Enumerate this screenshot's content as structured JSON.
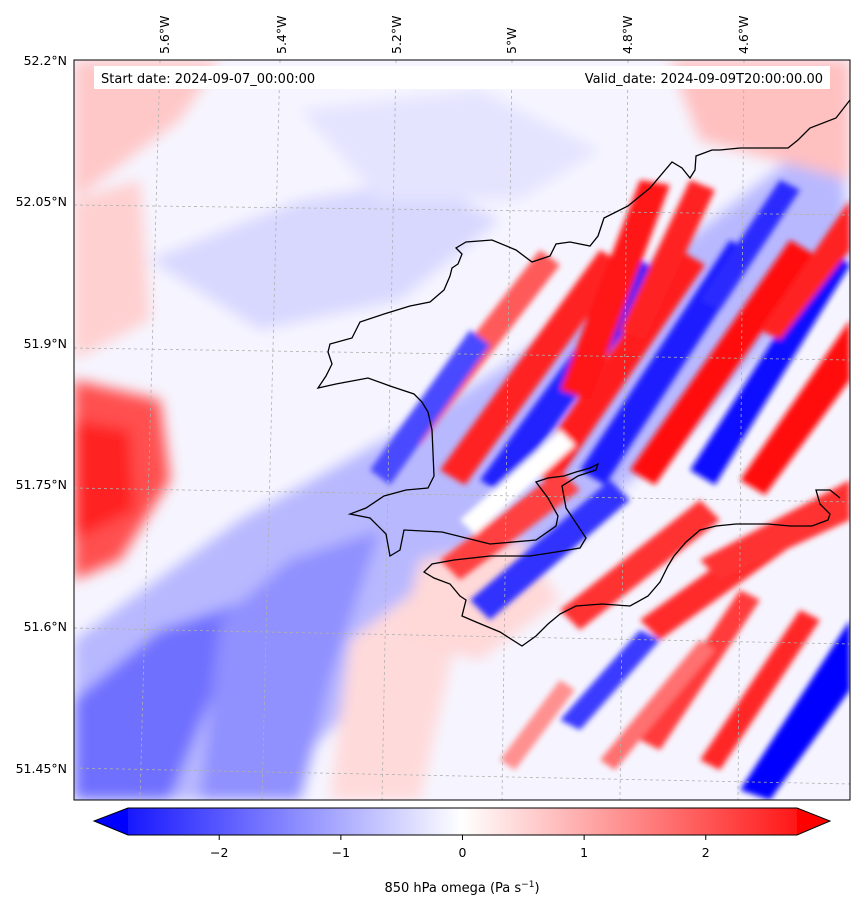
{
  "header": {
    "start_date": "Start date: 2024-09-07_00:00:00",
    "valid_date": "Valid_date: 2024-09-09T20:00:00.00"
  },
  "longitude_labels": [
    "5.6°W",
    "5.4°W",
    "5.2°W",
    "5°W",
    "4.8°W",
    "4.6°W"
  ],
  "latitude_labels": [
    "52.2°N",
    "52.05°N",
    "51.9°N",
    "51.75°N",
    "51.6°N",
    "51.45°N"
  ],
  "colorbar": {
    "ticks": [
      "−2",
      "−1",
      "0",
      "1",
      "2"
    ],
    "tick_values": [
      -2,
      -1,
      0,
      1,
      2
    ],
    "range": [
      -2.75,
      2.75
    ],
    "label_main": "850 hPa omega (Pa s",
    "label_exp": "−1",
    "label_close": ")",
    "colormap": "bwr",
    "extend": "both"
  },
  "colors": {
    "min": "#0000ff",
    "mid": "#ffffff",
    "max": "#ff0000",
    "coastline": "#000000",
    "gridline": "#b0b0b0"
  },
  "map": {
    "lon_range": [
      -5.78,
      -4.45
    ],
    "lat_range": [
      51.43,
      52.2
    ],
    "gridlines": true,
    "projection": "Lambert conformal"
  }
}
